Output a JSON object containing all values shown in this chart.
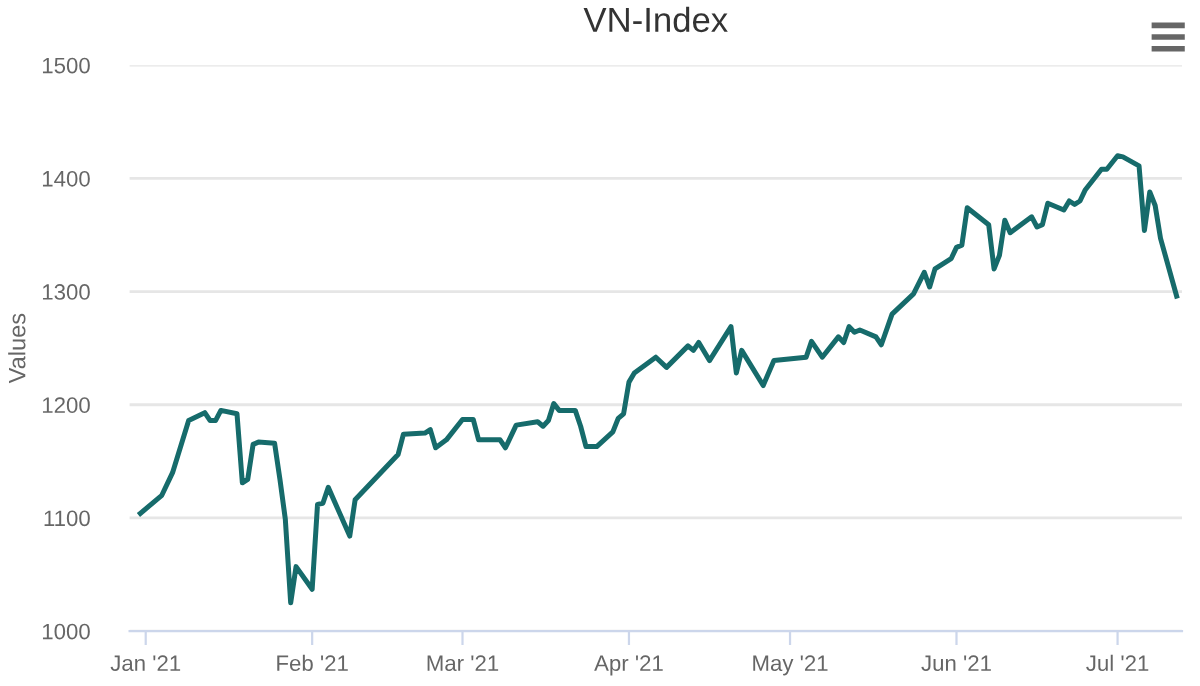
{
  "chart_data": {
    "type": "line",
    "title": "VN-Index",
    "ylabel": "Values",
    "x": [
      "2020-12-31",
      "2021-01-04",
      "2021-01-06",
      "2021-01-09",
      "2021-01-12",
      "2021-01-13",
      "2021-01-14",
      "2021-01-15",
      "2021-01-18",
      "2021-01-19",
      "2021-01-20",
      "2021-01-21",
      "2021-01-22",
      "2021-01-25",
      "2021-01-26",
      "2021-01-27",
      "2021-01-28",
      "2021-01-29",
      "2021-02-01",
      "2021-02-02",
      "2021-02-03",
      "2021-02-04",
      "2021-02-08",
      "2021-02-09",
      "2021-02-17",
      "2021-02-18",
      "2021-02-22",
      "2021-02-23",
      "2021-02-24",
      "2021-02-26",
      "2021-03-01",
      "2021-03-03",
      "2021-03-04",
      "2021-03-08",
      "2021-03-09",
      "2021-03-11",
      "2021-03-15",
      "2021-03-16",
      "2021-03-17",
      "2021-03-18",
      "2021-03-19",
      "2021-03-22",
      "2021-03-23",
      "2021-03-24",
      "2021-03-26",
      "2021-03-29",
      "2021-03-30",
      "2021-03-31",
      "2021-04-01",
      "2021-04-02",
      "2021-04-06",
      "2021-04-08",
      "2021-04-12",
      "2021-04-13",
      "2021-04-14",
      "2021-04-16",
      "2021-04-20",
      "2021-04-21",
      "2021-04-22",
      "2021-04-26",
      "2021-04-28",
      "2021-05-04",
      "2021-05-05",
      "2021-05-07",
      "2021-05-10",
      "2021-05-11",
      "2021-05-12",
      "2021-05-13",
      "2021-05-14",
      "2021-05-17",
      "2021-05-18",
      "2021-05-20",
      "2021-05-24",
      "2021-05-26",
      "2021-05-27",
      "2021-05-28",
      "2021-05-31",
      "2021-06-01",
      "2021-06-02",
      "2021-06-03",
      "2021-06-07",
      "2021-06-08",
      "2021-06-09",
      "2021-06-10",
      "2021-06-11",
      "2021-06-15",
      "2021-06-16",
      "2021-06-17",
      "2021-06-18",
      "2021-06-21",
      "2021-06-22",
      "2021-06-23",
      "2021-06-24",
      "2021-06-25",
      "2021-06-28",
      "2021-06-29",
      "2021-07-01",
      "2021-07-02",
      "2021-07-05",
      "2021-07-06",
      "2021-07-07",
      "2021-07-08",
      "2021-07-09",
      "2021-07-12"
    ],
    "series": [
      {
        "color": "#166b6b",
        "values": [
          1104,
          1120,
          1140,
          1186,
          1193,
          1186,
          1186,
          1195,
          1192,
          1131,
          1134,
          1165,
          1167,
          1166,
          1134,
          1099,
          1025,
          1057,
          1037,
          1112,
          1113,
          1127,
          1084,
          1116,
          1156,
          1174,
          1175,
          1178,
          1162,
          1169,
          1187,
          1187,
          1169,
          1169,
          1162,
          1182,
          1185,
          1181,
          1186,
          1201,
          1195,
          1195,
          1181,
          1163,
          1163,
          1176,
          1188,
          1192,
          1220,
          1228,
          1242,
          1233,
          1252,
          1248,
          1255,
          1239,
          1269,
          1228,
          1248,
          1217,
          1239,
          1242,
          1256,
          1242,
          1260,
          1255,
          1269,
          1264,
          1266,
          1260,
          1253,
          1280,
          1298,
          1317,
          1304,
          1320,
          1329,
          1339,
          1341,
          1374,
          1359,
          1320,
          1332,
          1363,
          1352,
          1366,
          1357,
          1359,
          1378,
          1372,
          1380,
          1377,
          1380,
          1390,
          1408,
          1408,
          1420,
          1419,
          1411,
          1354,
          1388,
          1376,
          1347,
          1296
        ]
      }
    ],
    "xlim": [
      "2020-12-29",
      "2021-07-13"
    ],
    "xticks": [
      {
        "value": "2021-01-01",
        "label": "Jan '21"
      },
      {
        "value": "2021-02-01",
        "label": "Feb '21"
      },
      {
        "value": "2021-03-01",
        "label": "Mar '21"
      },
      {
        "value": "2021-04-01",
        "label": "Apr '21"
      },
      {
        "value": "2021-05-01",
        "label": "May '21"
      },
      {
        "value": "2021-06-01",
        "label": "Jun '21"
      },
      {
        "value": "2021-07-01",
        "label": "Jul '21"
      }
    ],
    "ylim": [
      1000,
      1500
    ],
    "yticks": [
      1000,
      1100,
      1200,
      1300,
      1400,
      1500
    ],
    "grid": "y",
    "legend": false,
    "marker": "none",
    "line_style": "solid"
  }
}
